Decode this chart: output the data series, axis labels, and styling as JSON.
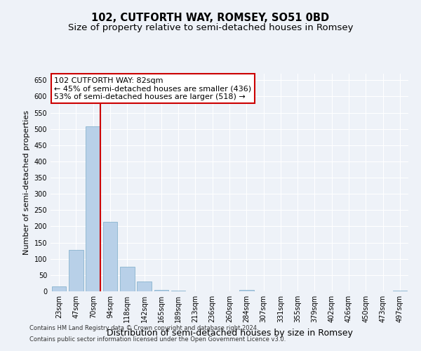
{
  "title": "102, CUTFORTH WAY, ROMSEY, SO51 0BD",
  "subtitle": "Size of property relative to semi-detached houses in Romsey",
  "xlabel": "Distribution of semi-detached houses by size in Romsey",
  "ylabel": "Number of semi-detached properties",
  "categories": [
    "23sqm",
    "47sqm",
    "70sqm",
    "94sqm",
    "118sqm",
    "142sqm",
    "165sqm",
    "189sqm",
    "213sqm",
    "236sqm",
    "260sqm",
    "284sqm",
    "307sqm",
    "331sqm",
    "355sqm",
    "379sqm",
    "402sqm",
    "426sqm",
    "450sqm",
    "473sqm",
    "497sqm"
  ],
  "values": [
    15,
    128,
    507,
    213,
    76,
    30,
    5,
    3,
    0,
    0,
    0,
    4,
    0,
    0,
    0,
    0,
    0,
    0,
    0,
    0,
    3
  ],
  "bar_color": "#b8d0e8",
  "bar_edge_color": "#7aaac8",
  "vline_color": "#cc0000",
  "vline_x_index": 2,
  "annotation_line1": "102 CUTFORTH WAY: 82sqm",
  "annotation_line2": "← 45% of semi-detached houses are smaller (436)",
  "annotation_line3": "53% of semi-detached houses are larger (518) →",
  "annotation_box_color": "#cc0000",
  "ylim": [
    0,
    670
  ],
  "yticks": [
    0,
    50,
    100,
    150,
    200,
    250,
    300,
    350,
    400,
    450,
    500,
    550,
    600,
    650
  ],
  "footer_line1": "Contains HM Land Registry data © Crown copyright and database right 2024.",
  "footer_line2": "Contains public sector information licensed under the Open Government Licence v3.0.",
  "bg_color": "#eef2f8",
  "grid_color": "#ffffff",
  "title_fontsize": 10.5,
  "subtitle_fontsize": 9.5,
  "tick_fontsize": 7,
  "ylabel_fontsize": 8,
  "xlabel_fontsize": 9,
  "annotation_fontsize": 8,
  "footer_fontsize": 6
}
